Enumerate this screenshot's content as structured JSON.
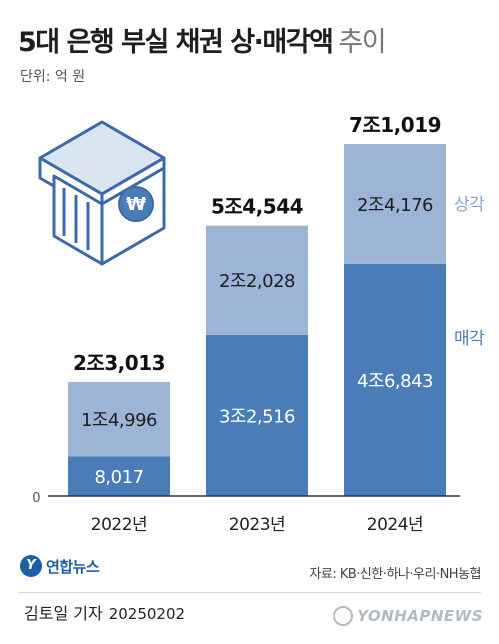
{
  "title": "5대 은행 부실 채권 상·매각액",
  "title_suffix": "추이",
  "unit": "단위: 억 원",
  "chart_data": {
    "type": "bar",
    "stacked": true,
    "categories": [
      "2022년",
      "2023년",
      "2024년"
    ],
    "totals": [
      23013,
      54544,
      71019
    ],
    "total_labels": [
      "2조3,013",
      "5조4,544",
      "7조1,019"
    ],
    "series": [
      {
        "name": "매각",
        "values": [
          8017,
          32516,
          46843
        ],
        "labels": [
          "8,017",
          "3조2,516",
          "4조6,843"
        ],
        "color": "#4a7db8"
      },
      {
        "name": "상각",
        "values": [
          14996,
          22028,
          24176
        ],
        "labels": [
          "1조4,996",
          "2조2,028",
          "2조4,176"
        ],
        "color": "#9cb4d6"
      }
    ],
    "baseline_label": "0",
    "ylim": [
      0,
      71019
    ]
  },
  "colors": {
    "sale": "#4a7db8",
    "writeoff": "#9cb4d6",
    "icon_fill": "#dbe5f1",
    "icon_stroke": "#3c6aa8"
  },
  "source": "자료: KB·신한·하나·우리·NH농협",
  "logo_text": "연합뉴스",
  "credit_name": "김토일 기자",
  "credit_date": "20250202",
  "watermark": "YONHAPNEWS",
  "icon": "bank-icon"
}
